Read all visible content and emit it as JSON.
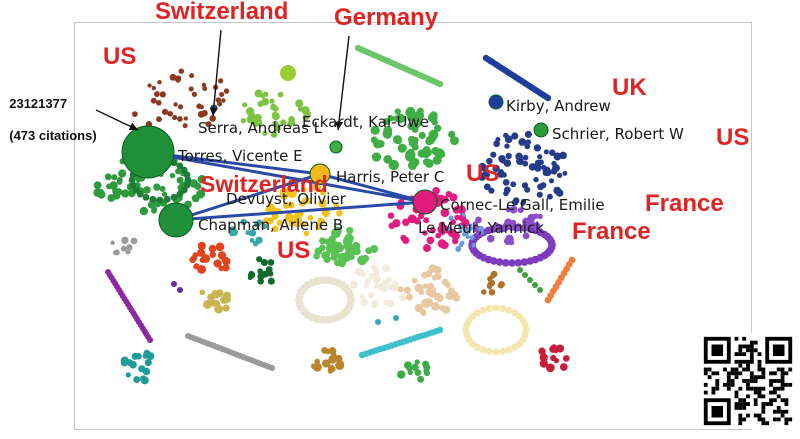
{
  "annotation": {
    "pmid": "23121377",
    "citations": "(473 citations)"
  },
  "authors": [
    {
      "id": "serra",
      "label": "Serra, Andreas L"
    },
    {
      "id": "eckardt",
      "label": "Eckardt, Kai-Uwe"
    },
    {
      "id": "kirby",
      "label": "Kirby, Andrew"
    },
    {
      "id": "schrier",
      "label": "Schrier, Robert W"
    },
    {
      "id": "torres",
      "label": "Torres, Vicente E"
    },
    {
      "id": "harris",
      "label": "Harris, Peter C"
    },
    {
      "id": "devuyst",
      "label": "Devuyst, Olivier"
    },
    {
      "id": "cornec",
      "label": "Cornec-Le Gall, Emilie"
    },
    {
      "id": "chapman",
      "label": "Chapman, Arlene B"
    },
    {
      "id": "lemeur",
      "label": "Le Meur, Yannick"
    }
  ],
  "countries": [
    {
      "id": "switzerland-top",
      "label": "Switzerland"
    },
    {
      "id": "germany",
      "label": "Germany"
    },
    {
      "id": "us-left",
      "label": "US"
    },
    {
      "id": "uk",
      "label": "UK"
    },
    {
      "id": "us-right",
      "label": "US"
    },
    {
      "id": "us-center",
      "label": "US"
    },
    {
      "id": "switzerland-mid",
      "label": "Switzerland"
    },
    {
      "id": "france-right",
      "label": "France"
    },
    {
      "id": "france-mid",
      "label": "France"
    },
    {
      "id": "us-bottom",
      "label": "US"
    }
  ],
  "colors": {
    "edge": "#2a4aa8",
    "country_text": "#e02424",
    "arrow": "#111111",
    "frame": "#c8c8c8"
  },
  "icons": {
    "qr": "qr-code-icon"
  }
}
